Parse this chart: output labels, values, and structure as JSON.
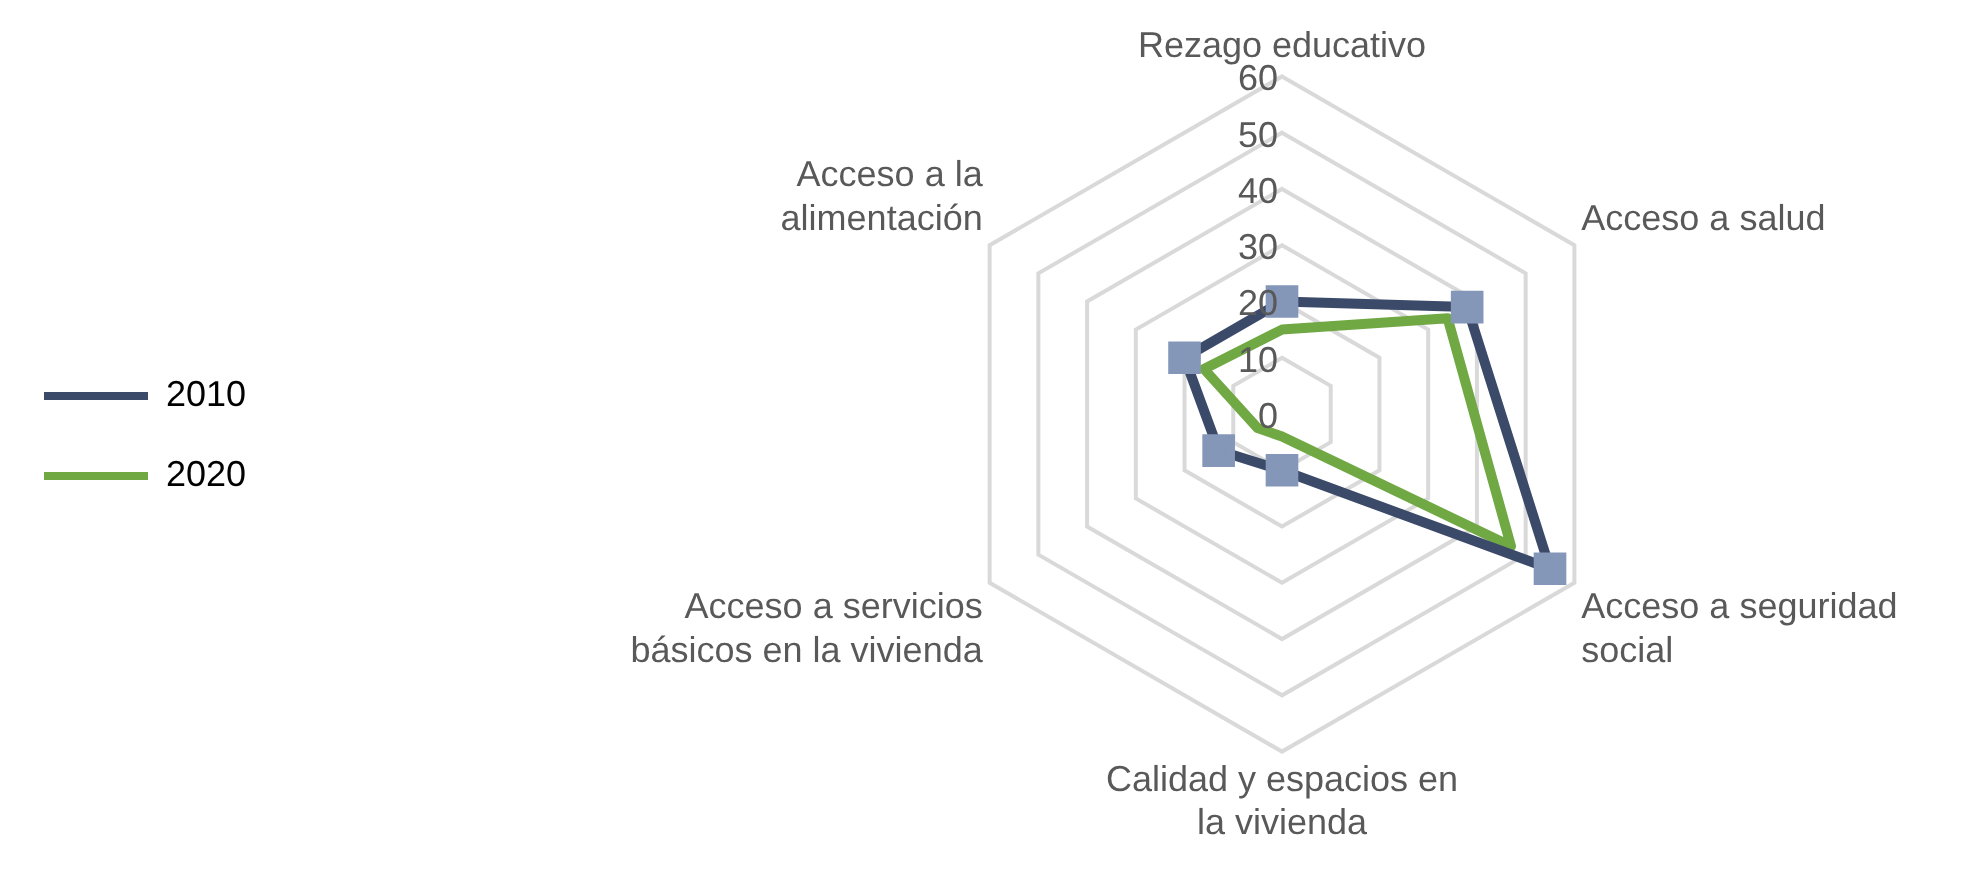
{
  "chart_data": {
    "type": "radar",
    "categories": [
      "Rezago educativo",
      "Acceso a salud",
      "Acceso a seguridad social",
      "Calidad y espacios en la vivienda",
      "Acceso a servicios básicos en la vivienda",
      "Acceso a la alimentación"
    ],
    "series": [
      {
        "name": "2010",
        "color": "#3c4a6a",
        "marker": "square",
        "values": [
          20,
          38,
          55,
          10,
          13,
          20
        ]
      },
      {
        "name": "2020",
        "color": "#70a844",
        "marker": "none",
        "values": [
          15,
          34,
          47,
          4,
          5,
          16
        ]
      }
    ],
    "ylim": [
      0,
      60
    ],
    "yticks": [
      0,
      10,
      20,
      30,
      40,
      50,
      60
    ],
    "grid": true,
    "legend": "left"
  }
}
